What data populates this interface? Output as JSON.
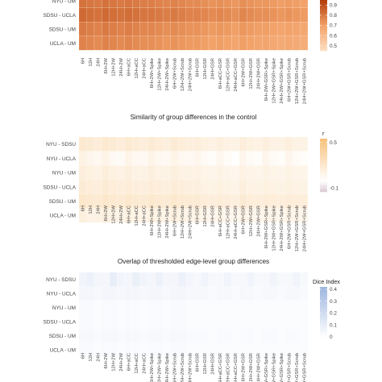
{
  "chart_data": [
    {
      "type": "heatmap",
      "title": "",
      "rows": [
        "NYU - UM",
        "SDSU - UCLA",
        "SDSU - UM",
        "UCLA - UM"
      ],
      "columns": [
        "6H",
        "12H",
        "24H",
        "6H+2W",
        "12H+2W",
        "24H+2W",
        "6H+aCC",
        "12H+aCC",
        "24H+aCC",
        "6H+2W+Spike",
        "12H+2W+Spike",
        "24H+2W+Spike",
        "6H+2W+Scrub",
        "12H+2W+Scrub",
        "24H+2W+Scrub",
        "6H+GSR",
        "12H+GSR",
        "24H+GSR",
        "6H+aCC+GSR",
        "12H+aCC+GSR",
        "24H+aCC+GSR",
        "6H+2W+GSR",
        "12H+2W+GSR",
        "24H+2W+GSR",
        "6H+2W+GSR+Spike",
        "12H+2W+GSR+Spike",
        "24H+2W+GSR+Spike",
        "6H+2W+GSR+Scrub",
        "12H+2W+GSR+Scrub",
        "24H+2W+GSR+Scrub"
      ],
      "values": [
        [
          0.82,
          0.81,
          0.8,
          0.82,
          0.81,
          0.8,
          0.81,
          0.8,
          0.79,
          0.79,
          0.78,
          0.77,
          0.78,
          0.77,
          0.76,
          0.76,
          0.75,
          0.74,
          0.75,
          0.74,
          0.73,
          0.75,
          0.74,
          0.73,
          0.73,
          0.72,
          0.71,
          0.72,
          0.71,
          0.7
        ],
        [
          0.84,
          0.83,
          0.82,
          0.84,
          0.83,
          0.82,
          0.83,
          0.82,
          0.81,
          0.81,
          0.8,
          0.79,
          0.8,
          0.79,
          0.78,
          0.78,
          0.77,
          0.76,
          0.77,
          0.76,
          0.75,
          0.77,
          0.76,
          0.75,
          0.75,
          0.74,
          0.73,
          0.74,
          0.73,
          0.72
        ],
        [
          0.8,
          0.79,
          0.78,
          0.8,
          0.79,
          0.78,
          0.79,
          0.78,
          0.77,
          0.77,
          0.76,
          0.75,
          0.76,
          0.75,
          0.74,
          0.74,
          0.73,
          0.72,
          0.73,
          0.72,
          0.71,
          0.73,
          0.72,
          0.71,
          0.71,
          0.7,
          0.69,
          0.7,
          0.69,
          0.68
        ],
        [
          0.78,
          0.77,
          0.76,
          0.78,
          0.77,
          0.76,
          0.77,
          0.76,
          0.75,
          0.75,
          0.74,
          0.73,
          0.74,
          0.73,
          0.72,
          0.72,
          0.71,
          0.7,
          0.71,
          0.7,
          0.69,
          0.71,
          0.7,
          0.69,
          0.69,
          0.68,
          0.67,
          0.68,
          0.67,
          0.66
        ]
      ],
      "scale": {
        "ticks": [
          0.5,
          0.6,
          0.7,
          0.8,
          0.9
        ],
        "min": 0.45,
        "max": 0.95,
        "colors": [
          "#fde0c5",
          "#f3a36a",
          "#b33d0a"
        ]
      },
      "legend_title": ""
    },
    {
      "type": "heatmap",
      "title": "Similarity of group differences in the control",
      "rows": [
        "NYU - SDSU",
        "NYU - UCLA",
        "NYU - UM",
        "SDSU - UCLA",
        "SDSU - UM",
        "UCLA - UM"
      ],
      "columns": [
        "6H",
        "12H",
        "24H",
        "6H+2W",
        "12H+2W",
        "24H+2W",
        "6H+aCC",
        "12H+aCC",
        "24H+aCC",
        "6H+2W+Spike",
        "12H+2W+Spike",
        "24H+2W+Spike",
        "6H+2W+Scrub",
        "12H+2W+Scrub",
        "24H+2W+Scrub",
        "6H+GSR",
        "12H+GSR",
        "24H+GSR",
        "6H+aCC+GSR",
        "12H+aCC+GSR",
        "24H+aCC+GSR",
        "6H+2W+GSR",
        "12H+2W+GSR",
        "24H+2W+GSR",
        "6H+2W+GSR+Spike",
        "12H+2W+GSR+Spike",
        "24H+2W+GSR+Spike",
        "6H+2W+GSR+Scrub",
        "12H+2W+GSR+Scrub",
        "24H+2W+GSR+Scrub"
      ],
      "values": [
        [
          0.2,
          0.18,
          0.16,
          0.2,
          0.18,
          0.16,
          0.19,
          0.17,
          0.15,
          0.18,
          0.16,
          0.14,
          0.18,
          0.16,
          0.14,
          0.15,
          0.13,
          0.12,
          0.14,
          0.12,
          0.11,
          0.15,
          0.13,
          0.12,
          0.14,
          0.12,
          0.11,
          0.14,
          0.12,
          0.11
        ],
        [
          0.12,
          0.08,
          0.06,
          0.1,
          0.05,
          0.04,
          0.1,
          0.06,
          0.05,
          0.1,
          0.06,
          0.05,
          0.1,
          0.06,
          0.05,
          0.08,
          0.04,
          0.02,
          0.07,
          0.03,
          0.0,
          0.08,
          0.04,
          0.02,
          0.08,
          0.04,
          0.02,
          0.08,
          0.04,
          0.02
        ],
        [
          0.15,
          0.13,
          0.12,
          0.15,
          0.13,
          0.12,
          0.14,
          0.12,
          0.11,
          0.14,
          0.12,
          0.11,
          0.14,
          0.12,
          0.11,
          0.12,
          0.1,
          0.09,
          0.11,
          0.09,
          0.08,
          0.12,
          0.1,
          0.09,
          0.11,
          0.1,
          0.09,
          0.11,
          0.1,
          0.09
        ],
        [
          0.18,
          0.16,
          0.15,
          0.18,
          0.16,
          0.15,
          0.17,
          0.15,
          0.14,
          0.17,
          0.15,
          0.14,
          0.17,
          0.15,
          0.14,
          0.14,
          0.12,
          0.11,
          0.13,
          0.11,
          0.1,
          0.14,
          0.12,
          0.11,
          0.13,
          0.12,
          0.11,
          0.13,
          0.12,
          0.11
        ],
        [
          0.22,
          0.2,
          0.19,
          0.22,
          0.2,
          0.19,
          0.21,
          0.19,
          0.18,
          0.21,
          0.19,
          0.18,
          0.21,
          0.19,
          0.18,
          0.18,
          0.16,
          0.15,
          0.17,
          0.15,
          0.14,
          0.18,
          0.16,
          0.15,
          0.17,
          0.16,
          0.15,
          0.17,
          0.16,
          0.15
        ],
        [
          0.14,
          0.12,
          0.11,
          0.14,
          0.12,
          0.11,
          0.13,
          0.11,
          0.1,
          0.13,
          0.11,
          0.1,
          0.13,
          0.11,
          0.1,
          0.11,
          0.09,
          0.08,
          0.1,
          0.08,
          0.07,
          0.11,
          0.09,
          0.08,
          0.1,
          0.09,
          0.08,
          0.1,
          0.09,
          0.08
        ]
      ],
      "scale": {
        "ticks": [
          -0.1,
          0.5
        ],
        "min": -0.15,
        "max": 0.55,
        "colors": [
          "#d9c6cf",
          "#ffffff",
          "#f7c27d"
        ],
        "zero": 0.0
      },
      "legend_title": "r"
    },
    {
      "type": "heatmap",
      "title": "Overlap of thresholded edge-level group differences",
      "rows": [
        "NYU - SDSU",
        "NYU - UCLA",
        "NYU - UM",
        "SDSU - UCLA",
        "SDSU - UM",
        "UCLA - UM"
      ],
      "columns": [
        "6H",
        "12H",
        "24H",
        "6H+2W",
        "12H+2W",
        "24H+2W",
        "6H+aCC",
        "12H+aCC",
        "24H+aCC",
        "6H+2W+Spike",
        "12H+2W+Spike",
        "24H+2W+Spike",
        "6H+2W+Scrub",
        "12H+2W+Scrub",
        "24H+2W+Scrub",
        "6H+GSR",
        "12H+GSR",
        "24H+GSR",
        "6H+aCC+GSR",
        "12H+aCC+GSR",
        "24H+aCC+GSR",
        "6H+2W+GSR",
        "12H+2W+GSR",
        "24H+2W+GSR",
        "6H+2W+GSR+Spike",
        "12H+2W+GSR+Spike",
        "24H+2W+GSR+Spike",
        "6H+2W+GSR+Scrub",
        "12H+2W+GSR+Scrub",
        "24H+2W+GSR+Scrub"
      ],
      "values": [
        [
          0.06,
          0.08,
          0.05,
          0.05,
          0.1,
          0.06,
          0.05,
          0.09,
          0.06,
          0.05,
          0.08,
          0.05,
          0.05,
          0.08,
          0.05,
          0.04,
          0.06,
          0.04,
          0.04,
          0.06,
          0.04,
          0.04,
          0.06,
          0.04,
          0.04,
          0.06,
          0.04,
          0.04,
          0.06,
          0.04
        ],
        [
          0.05,
          0.05,
          0.04,
          0.05,
          0.05,
          0.04,
          0.05,
          0.05,
          0.04,
          0.05,
          0.05,
          0.04,
          0.05,
          0.05,
          0.04,
          0.04,
          0.04,
          0.03,
          0.04,
          0.04,
          0.03,
          0.04,
          0.04,
          0.03,
          0.04,
          0.04,
          0.03,
          0.04,
          0.04,
          0.03
        ],
        [
          0.03,
          0.03,
          0.02,
          0.03,
          0.03,
          0.02,
          0.03,
          0.03,
          0.02,
          0.03,
          0.03,
          0.02,
          0.03,
          0.03,
          0.02,
          0.02,
          0.02,
          0.02,
          0.02,
          0.02,
          0.02,
          0.02,
          0.02,
          0.02,
          0.02,
          0.02,
          0.02,
          0.02,
          0.02,
          0.02
        ],
        [
          0.03,
          0.03,
          0.02,
          0.03,
          0.03,
          0.02,
          0.03,
          0.03,
          0.02,
          0.03,
          0.03,
          0.02,
          0.03,
          0.03,
          0.02,
          0.02,
          0.02,
          0.02,
          0.02,
          0.02,
          0.02,
          0.02,
          0.02,
          0.02,
          0.02,
          0.02,
          0.02,
          0.02,
          0.02,
          0.02
        ],
        [
          0.04,
          0.04,
          0.03,
          0.04,
          0.04,
          0.03,
          0.04,
          0.04,
          0.03,
          0.04,
          0.04,
          0.03,
          0.04,
          0.04,
          0.03,
          0.03,
          0.03,
          0.02,
          0.03,
          0.03,
          0.02,
          0.03,
          0.03,
          0.02,
          0.03,
          0.03,
          0.02,
          0.03,
          0.03,
          0.02
        ],
        [
          0.03,
          0.03,
          0.02,
          0.03,
          0.03,
          0.02,
          0.03,
          0.03,
          0.02,
          0.03,
          0.03,
          0.02,
          0.03,
          0.03,
          0.02,
          0.02,
          0.02,
          0.02,
          0.02,
          0.02,
          0.02,
          0.02,
          0.02,
          0.02,
          0.02,
          0.02,
          0.02,
          0.02,
          0.02,
          0.02
        ]
      ],
      "scale": {
        "ticks": [
          0.0,
          0.1,
          0.2,
          0.3,
          0.4
        ],
        "min": 0.0,
        "max": 0.42,
        "colors": [
          "#ffffff",
          "#9fb7e0"
        ]
      },
      "legend_title": "Dice Index"
    }
  ]
}
